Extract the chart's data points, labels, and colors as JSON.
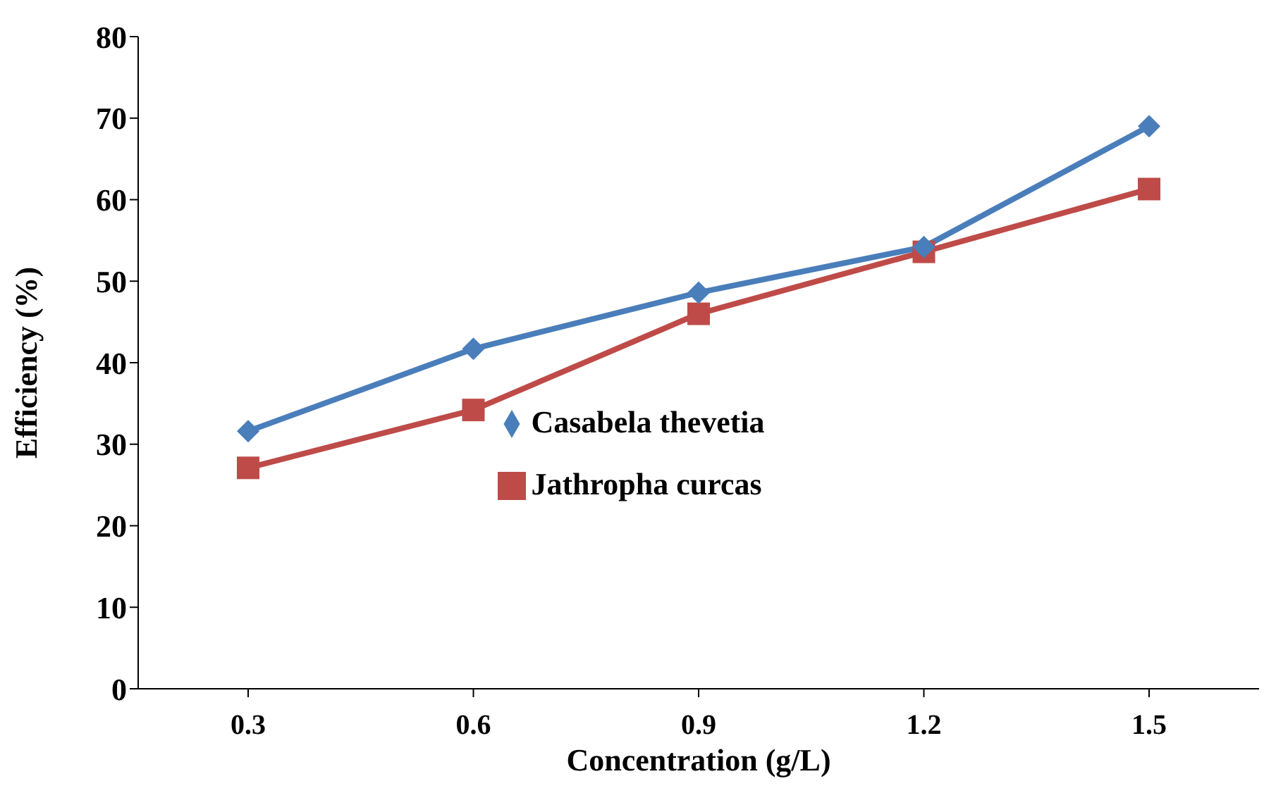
{
  "chart_data": {
    "type": "line",
    "xlabel": "Concentration (g/L)",
    "ylabel": "Efficiency (%)",
    "categories": [
      "0.3",
      "0.6",
      "0.9",
      "1.2",
      "1.5"
    ],
    "series": [
      {
        "name": "Casabela thevetia",
        "color": "#4a7ebb",
        "marker": "diamond",
        "values": [
          31.6,
          41.7,
          48.6,
          54.2,
          69.0
        ]
      },
      {
        "name": "Jathropha curcas",
        "color": "#be4b48",
        "marker": "square",
        "values": [
          27.1,
          34.2,
          46.0,
          53.6,
          61.3
        ]
      }
    ],
    "ylim": [
      0,
      80
    ],
    "yticks": [
      0,
      10,
      20,
      30,
      40,
      50,
      60,
      70,
      80
    ],
    "grid": false,
    "legend": "center",
    "line_style": "solid"
  }
}
